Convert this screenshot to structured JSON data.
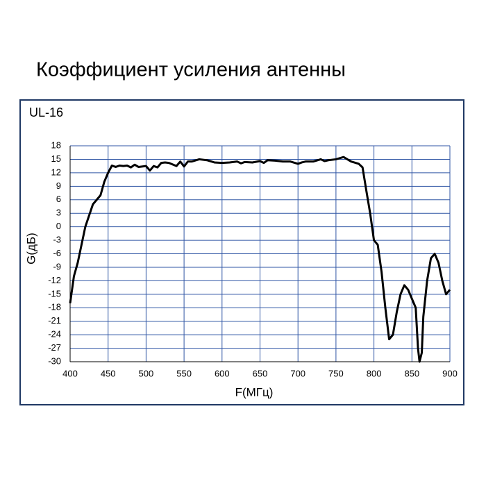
{
  "chart_data": {
    "type": "line",
    "title": "Коэффициент усиления антенны",
    "subtitle": "UL-16",
    "x_label": "F(МГц)",
    "y_label": "G(дБ)",
    "x": [
      400,
      405,
      410,
      420,
      430,
      440,
      445,
      450,
      455,
      460,
      465,
      470,
      475,
      480,
      485,
      490,
      500,
      505,
      510,
      515,
      520,
      525,
      530,
      540,
      545,
      550,
      555,
      560,
      570,
      580,
      590,
      600,
      610,
      620,
      625,
      630,
      640,
      650,
      655,
      660,
      670,
      680,
      690,
      700,
      705,
      710,
      720,
      730,
      735,
      740,
      750,
      760,
      770,
      780,
      785,
      790,
      795,
      800,
      805,
      810,
      815,
      820,
      825,
      830,
      835,
      840,
      845,
      850,
      855,
      858,
      860,
      863,
      865,
      870,
      875,
      880,
      885,
      890,
      895,
      900
    ],
    "series": [
      {
        "color": "#000000",
        "values": [
          -17,
          -11,
          -8,
          0,
          5,
          7,
          10,
          12,
          13.6,
          13.3,
          13.6,
          13.5,
          13.6,
          13.2,
          13.8,
          13.3,
          13.5,
          12.5,
          13.5,
          13.2,
          14.2,
          14.3,
          14.2,
          13.5,
          14.5,
          13.4,
          14.5,
          14.5,
          15,
          14.8,
          14.3,
          14.2,
          14.3,
          14.5,
          14.1,
          14.4,
          14.3,
          14.6,
          14.2,
          14.8,
          14.7,
          14.5,
          14.5,
          14,
          14.3,
          14.5,
          14.5,
          15,
          14.6,
          14.8,
          15,
          15.5,
          14.5,
          14,
          13.2,
          8,
          3,
          -3,
          -4,
          -10,
          -18,
          -25,
          -24,
          -19,
          -15,
          -13,
          -14,
          -16,
          -18,
          -27,
          -30,
          -28,
          -20,
          -12,
          -7,
          -6,
          -8,
          -12,
          -15,
          -14
        ]
      }
    ],
    "xlim": [
      400,
      900
    ],
    "xticks": [
      400,
      450,
      500,
      550,
      600,
      650,
      700,
      750,
      800,
      850,
      900
    ],
    "ylim": [
      -30,
      18
    ],
    "yticks": [
      18,
      15,
      12,
      9,
      6,
      3,
      0,
      -3,
      -6,
      -9,
      -12,
      -15,
      -18,
      -21,
      -24,
      -27,
      -30
    ],
    "grid": true,
    "grid_color": "#2f55a4"
  }
}
